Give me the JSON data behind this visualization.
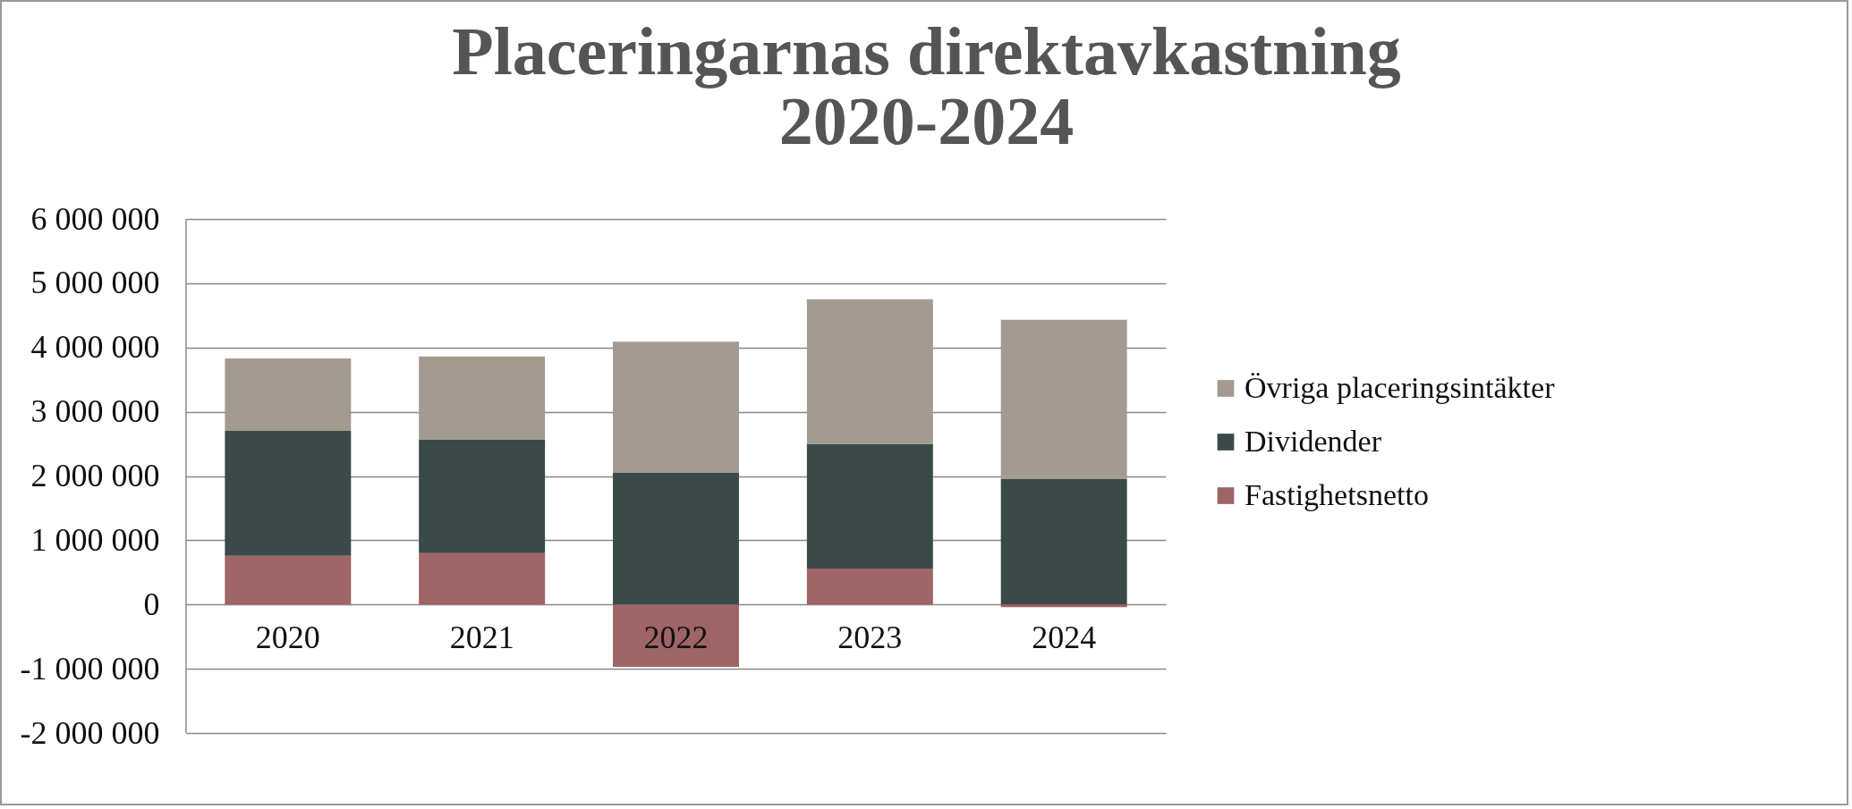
{
  "chart_data": {
    "type": "bar",
    "title": [
      "Placeringarnas direktavkastning",
      "2020-2024"
    ],
    "stacked": true,
    "categories": [
      "2020",
      "2021",
      "2022",
      "2023",
      "2024"
    ],
    "series": [
      {
        "name": "Fastighetsnetto",
        "color": "#9e6466",
        "values": [
          760000,
          800000,
          -970000,
          560000,
          -40000
        ]
      },
      {
        "name": "Dividender",
        "color": "#3a4a49",
        "values": [
          1950000,
          1770000,
          2050000,
          1940000,
          1950000
        ]
      },
      {
        "name": "Övriga placeringsintäkter",
        "color": "#a39a90",
        "values": [
          1120000,
          1290000,
          2040000,
          2250000,
          2480000
        ]
      }
    ],
    "ylim": [
      -2000000,
      6000000
    ],
    "yticks": [
      {
        "value": -2000000,
        "label": "-2 000 000"
      },
      {
        "value": -1000000,
        "label": "-1 000 000"
      },
      {
        "value": 0,
        "label": "0"
      },
      {
        "value": 1000000,
        "label": "1 000 000"
      },
      {
        "value": 2000000,
        "label": "2 000 000"
      },
      {
        "value": 3000000,
        "label": "3 000 000"
      },
      {
        "value": 4000000,
        "label": "4 000 000"
      },
      {
        "value": 5000000,
        "label": "5 000 000"
      },
      {
        "value": 6000000,
        "label": "6 000 000"
      }
    ],
    "grid": "y",
    "legend": "right"
  }
}
